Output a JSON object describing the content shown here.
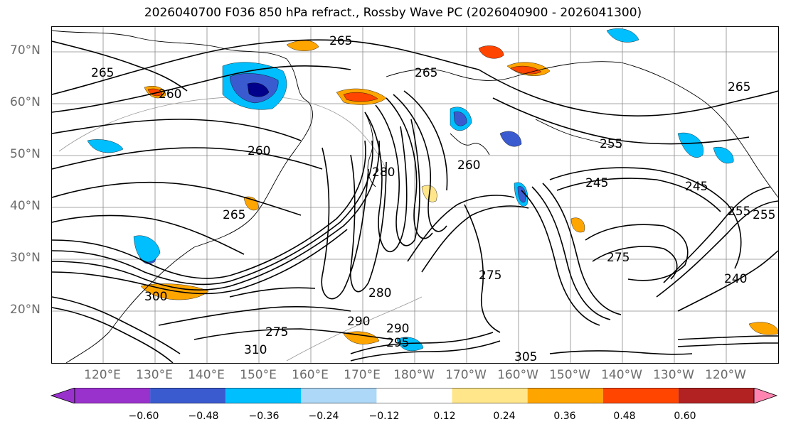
{
  "title": "2026040700 F036 850 hPa refract., Rossby Wave PC (2026040900 - 2026041300)",
  "lat_labels": [
    "70°N",
    "60°N",
    "50°N",
    "40°N",
    "30°N",
    "20°N"
  ],
  "lon_labels": [
    "120°E",
    "130°E",
    "140°E",
    "150°E",
    "160°E",
    "170°E",
    "180°W",
    "170°W",
    "160°W",
    "150°W",
    "140°W",
    "130°W",
    "120°W"
  ],
  "contour_labels": [
    "265",
    "265",
    "260",
    "260",
    "265",
    "260",
    "280",
    "265",
    "255",
    "245",
    "255",
    "275",
    "275",
    "280",
    "290",
    "275",
    "300",
    "305",
    "310",
    "295",
    "290",
    "245",
    "240",
    "265",
    "255"
  ],
  "colorbar": {
    "ticks": [
      "−0.60",
      "−0.48",
      "−0.36",
      "−0.24",
      "−0.12",
      "0.12",
      "0.24",
      "0.36",
      "0.48",
      "0.60"
    ],
    "colors": [
      "#9932cc",
      "#00008b",
      "#3a5bd0",
      "#00bfff",
      "#add8f7",
      "#ffffff",
      "#ffe68a",
      "#ffa500",
      "#ff4500",
      "#b22222",
      "#ff85b0"
    ]
  },
  "colors": {
    "contour": "#000000",
    "grid": "#808080",
    "coastline": "#000000"
  }
}
